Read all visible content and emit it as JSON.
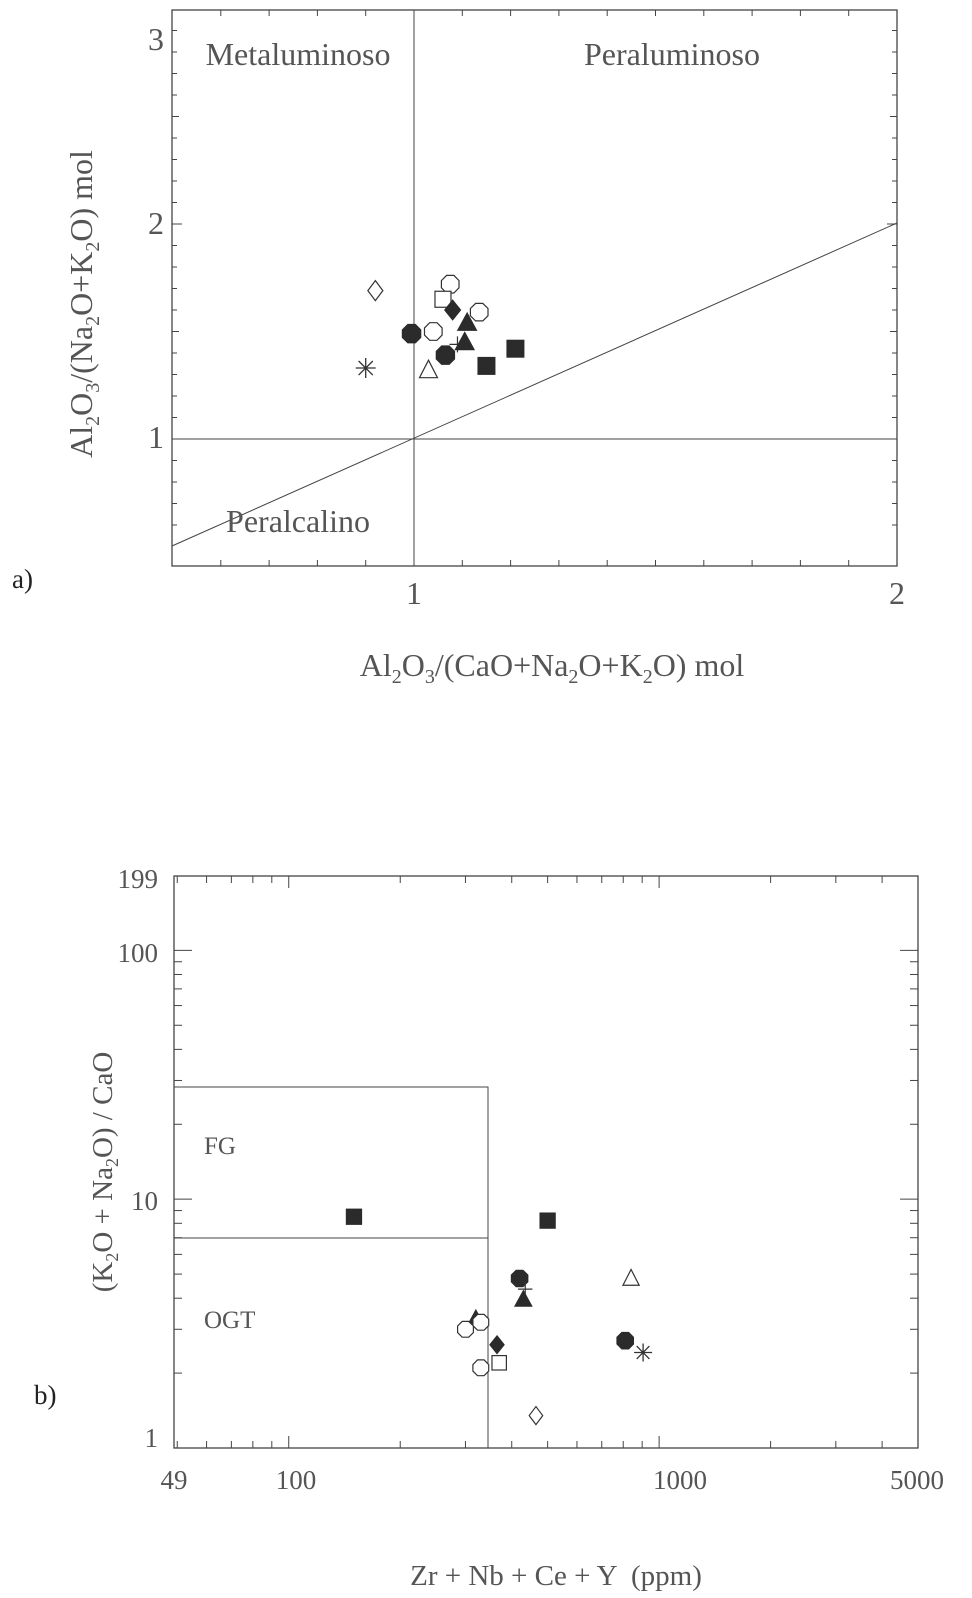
{
  "chart_data": [
    {
      "type": "scatter",
      "panel_label": "a)",
      "xlabel": "Al2O3/(CaO+Na2O+K2O) mol",
      "ylabel": "Al2O3/(Na2O+K2O) mol",
      "xlim": [
        0.5,
        2.0
      ],
      "ylim": [
        0.5,
        3.0
      ],
      "x_tick_labels": [
        "1",
        "2"
      ],
      "y_tick_labels": [
        "1",
        "2",
        "3"
      ],
      "regions": [
        "Metaluminoso",
        "Peraluminoso",
        "Peralcalino"
      ],
      "points": [
        {
          "marker": "open-diamond",
          "x": 0.92,
          "y": 1.69
        },
        {
          "marker": "open-circle",
          "x": 1.075,
          "y": 1.72
        },
        {
          "marker": "open-square",
          "x": 1.06,
          "y": 1.65
        },
        {
          "marker": "filled-diamond",
          "x": 1.08,
          "y": 1.6
        },
        {
          "marker": "open-circle",
          "x": 1.135,
          "y": 1.59
        },
        {
          "marker": "filled-triangle",
          "x": 1.11,
          "y": 1.54
        },
        {
          "marker": "filled-circle",
          "x": 0.995,
          "y": 1.49
        },
        {
          "marker": "open-circle",
          "x": 1.04,
          "y": 1.5
        },
        {
          "marker": "plus",
          "x": 1.09,
          "y": 1.44
        },
        {
          "marker": "filled-triangle",
          "x": 1.105,
          "y": 1.45
        },
        {
          "marker": "filled-circle",
          "x": 1.065,
          "y": 1.39
        },
        {
          "marker": "filled-square",
          "x": 1.21,
          "y": 1.42
        },
        {
          "marker": "filled-square",
          "x": 1.15,
          "y": 1.34
        },
        {
          "marker": "open-triangle",
          "x": 1.03,
          "y": 1.32
        },
        {
          "marker": "asterisk",
          "x": 0.9,
          "y": 1.33
        }
      ]
    },
    {
      "type": "scatter",
      "panel_label": "b)",
      "xlabel": "Zr + Nb + Ce + Y  (ppm)",
      "ylabel": "(K2O + Na2O) / CaO",
      "x_scale": "log",
      "y_scale": "log",
      "xlim": [
        49,
        5000
      ],
      "ylim": [
        1,
        199
      ],
      "x_tick_labels": [
        "49",
        "100",
        "1000",
        "5000"
      ],
      "y_tick_labels": [
        "1",
        "10",
        "100",
        "199"
      ],
      "regions": [
        "FG",
        "OGT"
      ],
      "points": [
        {
          "marker": "filled-square",
          "x": 150,
          "y": 8.5
        },
        {
          "marker": "filled-square",
          "x": 500,
          "y": 8.2
        },
        {
          "marker": "filled-circle",
          "x": 420,
          "y": 4.8
        },
        {
          "marker": "plus",
          "x": 435,
          "y": 4.35
        },
        {
          "marker": "filled-triangle",
          "x": 430,
          "y": 3.95
        },
        {
          "marker": "open-triangle",
          "x": 840,
          "y": 4.8
        },
        {
          "marker": "filled-triangle",
          "x": 320,
          "y": 3.3
        },
        {
          "marker": "open-circle",
          "x": 330,
          "y": 3.2
        },
        {
          "marker": "open-circle",
          "x": 300,
          "y": 3.0
        },
        {
          "marker": "filled-diamond",
          "x": 365,
          "y": 2.6
        },
        {
          "marker": "filled-circle",
          "x": 810,
          "y": 2.7
        },
        {
          "marker": "asterisk",
          "x": 905,
          "y": 2.42
        },
        {
          "marker": "open-square",
          "x": 370,
          "y": 2.2
        },
        {
          "marker": "open-circle",
          "x": 330,
          "y": 2.1
        },
        {
          "marker": "open-diamond",
          "x": 465,
          "y": 1.35
        }
      ]
    }
  ]
}
